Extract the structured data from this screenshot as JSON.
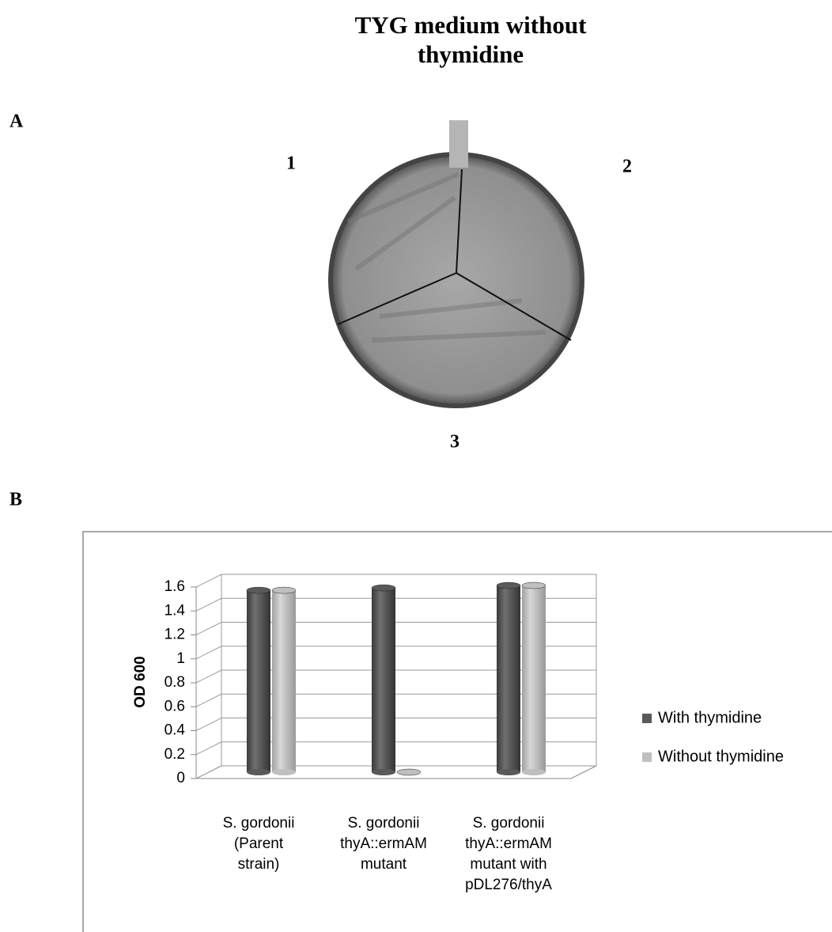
{
  "header": {
    "title_lines": [
      "TYG medium without",
      "thymidine"
    ],
    "panel_a": "A",
    "panel_b": "B"
  },
  "plate": {
    "labels": [
      "1",
      "2",
      "3"
    ]
  },
  "chart_data": {
    "type": "bar3d",
    "y_label": "OD 600",
    "categories": [
      [
        "S. gordonii",
        "(Parent",
        "strain)"
      ],
      [
        "S. gordonii",
        "thyA::ermAM",
        "mutant"
      ],
      [
        "S. gordonii",
        "thyA::ermAM",
        "mutant with",
        "pDL276/thyA"
      ]
    ],
    "series": [
      {
        "name": "With thymidine",
        "color": "#595959",
        "values": [
          1.52,
          1.54,
          1.56
        ]
      },
      {
        "name": "Without thymidine",
        "color": "#bfbfbf",
        "values": [
          1.52,
          0,
          1.56
        ]
      }
    ],
    "ylim": [
      0,
      1.6
    ],
    "yticks": [
      0,
      0.2,
      0.4,
      0.6,
      0.8,
      1,
      1.2,
      1.4,
      1.6
    ],
    "grid": true,
    "legend": "right"
  }
}
